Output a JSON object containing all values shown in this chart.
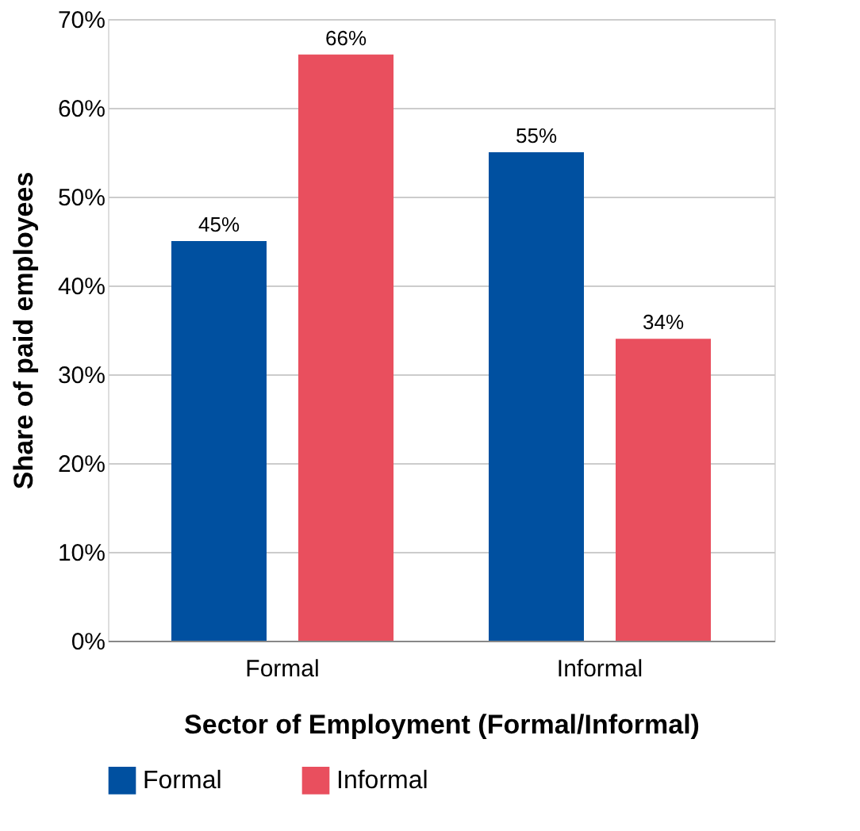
{
  "chart_data": {
    "type": "bar",
    "xlabel": "Sector of Employment (Formal/Informal)",
    "ylabel": "Share of paid employees",
    "categories": [
      "Formal",
      "Informal"
    ],
    "series": [
      {
        "name": "Formal",
        "color": "#0050a0",
        "values": [
          45,
          55
        ],
        "value_labels": [
          "45%",
          "55%"
        ]
      },
      {
        "name": "Informal",
        "color": "#e94f5e",
        "values": [
          66,
          34
        ],
        "value_labels": [
          "66%",
          "34%"
        ]
      }
    ],
    "ylim": [
      0,
      70
    ],
    "yticks": [
      {
        "value": 0,
        "label": "0%"
      },
      {
        "value": 10,
        "label": "10%"
      },
      {
        "value": 20,
        "label": "20%"
      },
      {
        "value": 30,
        "label": "30%"
      },
      {
        "value": 40,
        "label": "40%"
      },
      {
        "value": 50,
        "label": "50%"
      },
      {
        "value": 60,
        "label": "60%"
      },
      {
        "value": 70,
        "label": "70%"
      }
    ],
    "grid": "y",
    "legend": "bottom"
  }
}
